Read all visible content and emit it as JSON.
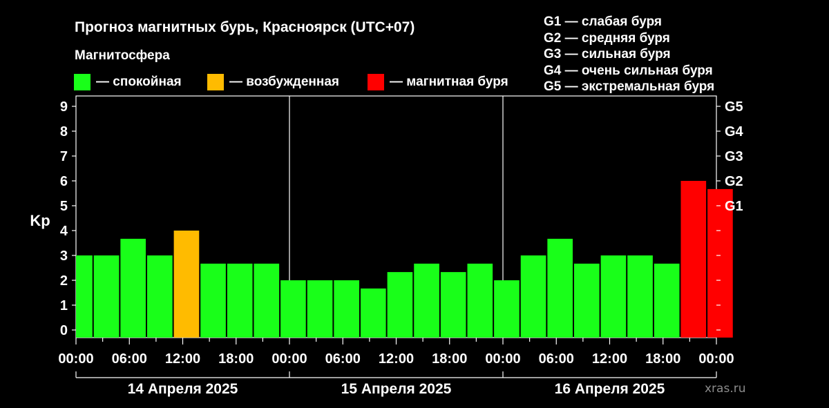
{
  "chart_data": {
    "type": "bar",
    "title": "Прогноз магнитных бурь, Красноярск (UTC+07)",
    "subtitle": "Магнитосфера",
    "ylabel": "Kp",
    "ylim": [
      0,
      9
    ],
    "yticks": [
      "0",
      "1",
      "2",
      "3",
      "4",
      "5",
      "6",
      "7",
      "8",
      "9"
    ],
    "right_axis_labels": [
      {
        "label": "G1",
        "kp": 5
      },
      {
        "label": "G2",
        "kp": 6
      },
      {
        "label": "G3",
        "kp": 7
      },
      {
        "label": "G4",
        "kp": 8
      },
      {
        "label": "G5",
        "kp": 9
      }
    ],
    "x_tick_labels": [
      "00:00",
      "06:00",
      "12:00",
      "18:00",
      "00:00",
      "06:00",
      "12:00",
      "18:00",
      "00:00",
      "06:00",
      "12:00",
      "18:00",
      "00:00"
    ],
    "days": [
      "14 Апреля 2025",
      "15 Апреля 2025",
      "16 Апреля 2025"
    ],
    "values": [
      3,
      3,
      3.67,
      3,
      4,
      2.67,
      2.67,
      2.67,
      2,
      2,
      2,
      1.67,
      2.33,
      2.67,
      2.33,
      2.67,
      2,
      3,
      3.67,
      2.67,
      3,
      3,
      2.67,
      6,
      5.67
    ],
    "bar_status": [
      "calm",
      "calm",
      "calm",
      "calm",
      "excited",
      "calm",
      "calm",
      "calm",
      "calm",
      "calm",
      "calm",
      "calm",
      "calm",
      "calm",
      "calm",
      "calm",
      "calm",
      "calm",
      "calm",
      "calm",
      "calm",
      "calm",
      "calm",
      "storm",
      "storm"
    ],
    "legend": [
      {
        "key": "calm",
        "label": "— спокойная",
        "color": "#19ff19"
      },
      {
        "key": "excited",
        "label": "— возбужденная",
        "color": "#ffbb00"
      },
      {
        "key": "storm",
        "label": "— магнитная буря",
        "color": "#ff0000"
      }
    ],
    "storm_levels": [
      "G1 — слабая буря",
      "G2 — средняя буря",
      "G3 — сильная буря",
      "G4 — очень сильная буря",
      "G5 — экстремальная буря"
    ],
    "grid": false,
    "legend_placement": "top"
  },
  "watermark": "xras.ru"
}
